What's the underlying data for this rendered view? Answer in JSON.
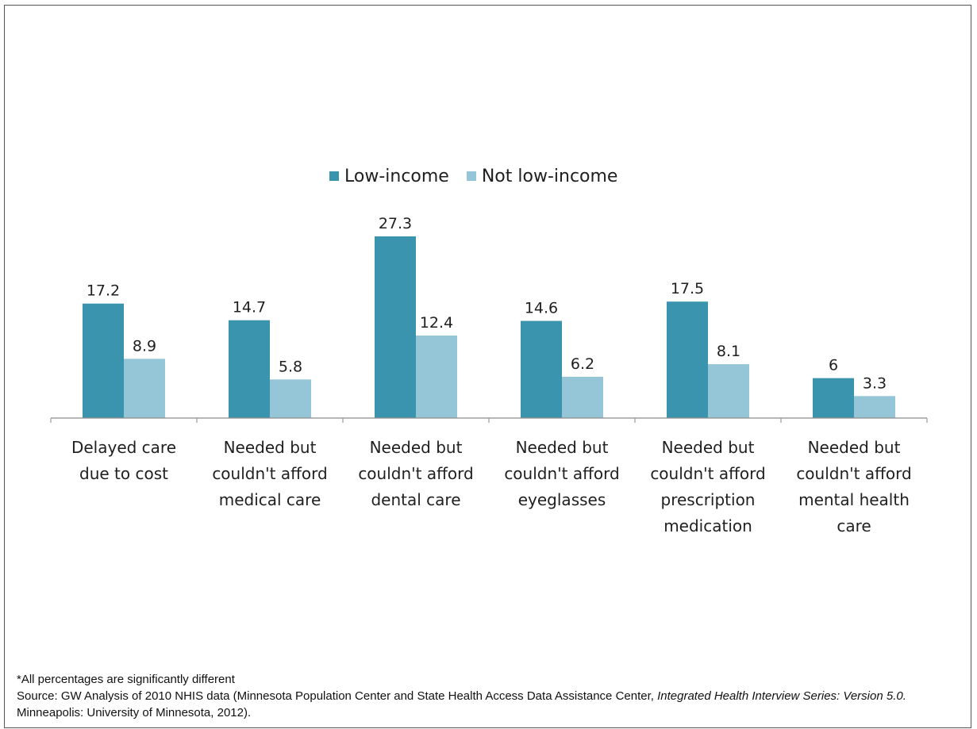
{
  "chart_data": {
    "type": "bar",
    "title": "",
    "xlabel": "",
    "ylabel": "",
    "ylim": [
      0,
      30
    ],
    "grid": false,
    "legend_position": "top-center",
    "categories": [
      "Delayed care\ndue to cost",
      "Needed but\ncouldn't afford\nmedical care",
      "Needed but\ncouldn't afford\ndental care",
      "Needed but\ncouldn't afford\neyeglasses",
      "Needed but\ncouldn't afford\nprescription\nmedication",
      "Needed but\ncouldn't afford\nmental health\ncare"
    ],
    "series": [
      {
        "name": "Low-income",
        "color": "#3b94ae",
        "values": [
          17.2,
          14.7,
          27.3,
          14.6,
          17.5,
          6
        ],
        "labels": [
          "17.2",
          "14.7",
          "27.3",
          "14.6",
          "17.5",
          "6"
        ]
      },
      {
        "name": "Not low-income",
        "color": "#94c6d7",
        "values": [
          8.9,
          5.8,
          12.4,
          6.2,
          8.1,
          3.3
        ],
        "labels": [
          "8.9",
          "5.8",
          "12.4",
          "6.2",
          "8.1",
          "3.3"
        ]
      }
    ]
  },
  "footnote": {
    "note": "*All percentages are significantly different",
    "source_prefix": "Source: GW Analysis of 2010 NHIS data (Minnesota Population Center and State Health Access Data Assistance Center, ",
    "source_title": "Integrated Health Interview Series:  Version 5.0.",
    "source_suffix": "  Minneapolis: University of Minnesota, 2012)."
  }
}
